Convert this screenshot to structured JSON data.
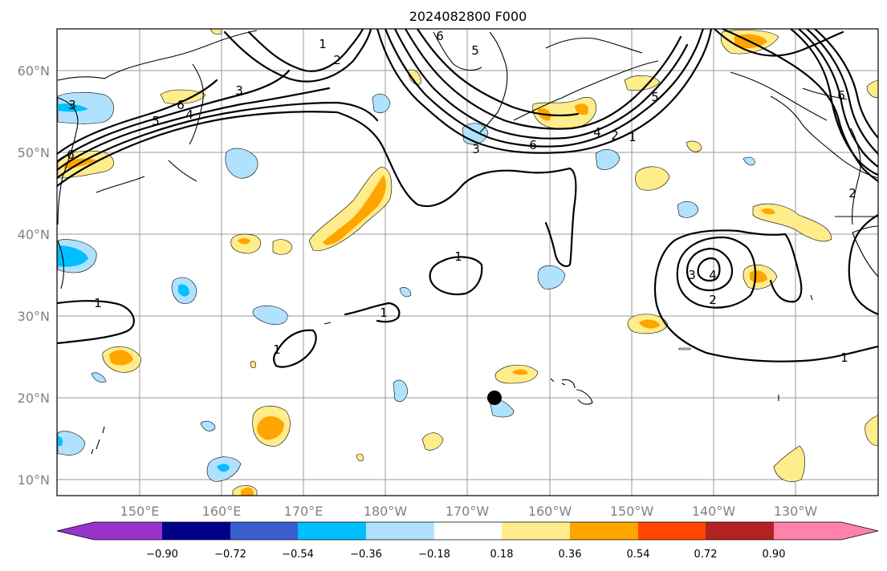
{
  "title": "2024082800 F000",
  "map": {
    "lat_labels": [
      "60°N",
      "50°N",
      "40°N",
      "30°N",
      "20°N",
      "10°N"
    ],
    "lon_labels": [
      "150°E",
      "160°E",
      "170°E",
      "180°W",
      "170°W",
      "160°W",
      "150°W",
      "140°W",
      "130°W"
    ],
    "contour_labels": [
      "1",
      "2",
      "3",
      "4",
      "5",
      "6"
    ],
    "marker_color": "#000000"
  },
  "colorbar": {
    "ticks": [
      "−0.90",
      "−0.72",
      "−0.54",
      "−0.36",
      "−0.18",
      "0.18",
      "0.36",
      "0.54",
      "0.72",
      "0.90"
    ],
    "colors": [
      "#9932cc",
      "#00008b",
      "#3a5fcd",
      "#00bfff",
      "#b0e2ff",
      "#ffffff",
      "#ffec8b",
      "#ffa500",
      "#ff4500",
      "#b22222",
      "#ff82ab"
    ]
  },
  "field_colors": {
    "neg_light": "#b0e2ff",
    "neg_mid": "#00bfff",
    "pos_light": "#ffec8b",
    "pos_mid": "#ffa500"
  }
}
